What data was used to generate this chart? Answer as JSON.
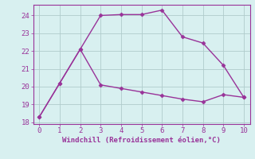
{
  "xlabel": "Windchill (Refroidissement éolien,°C)",
  "line1_x": [
    0,
    1,
    2,
    3,
    4,
    5,
    6,
    7,
    8,
    9,
    10
  ],
  "line1_y": [
    18.3,
    20.2,
    22.1,
    24.0,
    24.05,
    24.05,
    24.3,
    22.8,
    22.45,
    21.2,
    19.4
  ],
  "line2_x": [
    0,
    1,
    2,
    3,
    4,
    5,
    6,
    7,
    8,
    9,
    10
  ],
  "line2_y": [
    18.3,
    20.2,
    22.1,
    20.1,
    19.9,
    19.7,
    19.5,
    19.3,
    19.15,
    19.55,
    19.4
  ],
  "line_color": "#993399",
  "bg_color": "#d8f0f0",
  "grid_color": "#b0cccc",
  "text_color": "#993399",
  "ylim": [
    17.9,
    24.6
  ],
  "xlim": [
    -0.3,
    10.3
  ],
  "yticks": [
    18,
    19,
    20,
    21,
    22,
    23,
    24
  ],
  "xticks": [
    0,
    1,
    2,
    3,
    4,
    5,
    6,
    7,
    8,
    9,
    10
  ],
  "marker": "D",
  "markersize": 2.5,
  "linewidth": 1.0,
  "tick_fontsize": 6.5,
  "xlabel_fontsize": 6.5
}
